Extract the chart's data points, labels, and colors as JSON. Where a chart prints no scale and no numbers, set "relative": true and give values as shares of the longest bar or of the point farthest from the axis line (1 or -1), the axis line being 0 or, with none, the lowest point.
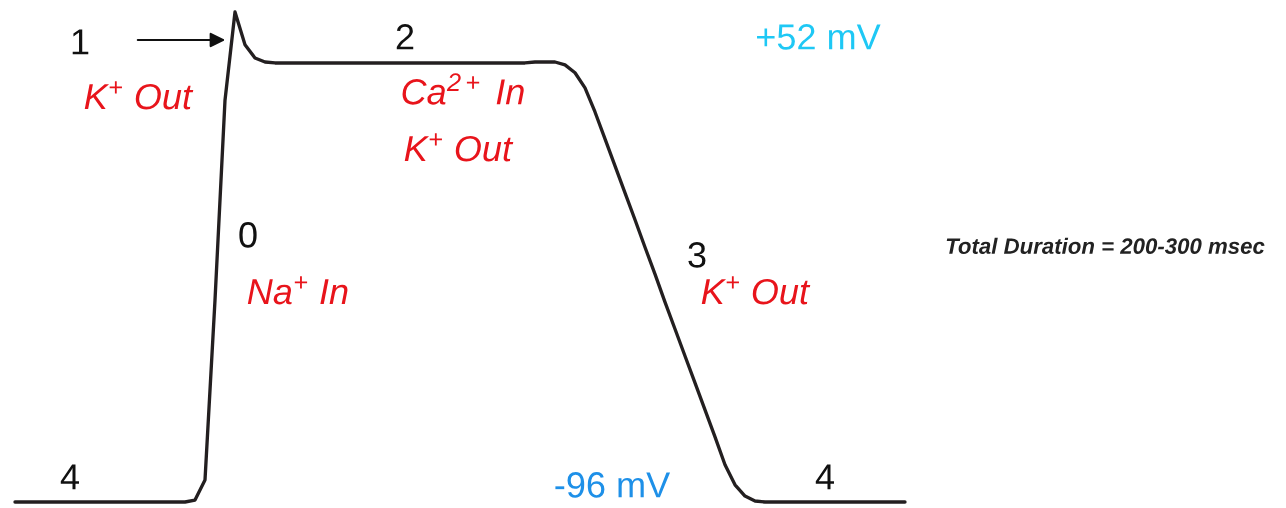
{
  "chart_data": {
    "type": "line",
    "relative": true,
    "categories": [
      null,
      null,
      null,
      null,
      null,
      null,
      null,
      null,
      null,
      null,
      null,
      null,
      null,
      null,
      null,
      null,
      null,
      null,
      null,
      null,
      null,
      null,
      null,
      null,
      null,
      null,
      null,
      null,
      null,
      null,
      null,
      null,
      null,
      null,
      null,
      null,
      null,
      null,
      null,
      null,
      null,
      null,
      null,
      null,
      null,
      null,
      null,
      null,
      null,
      null,
      null,
      null,
      null,
      null,
      null,
      null,
      null,
      null,
      null,
      null,
      null,
      null,
      null,
      null,
      null,
      null,
      null,
      null,
      null,
      null,
      null,
      null,
      null,
      null,
      null,
      null,
      null,
      null,
      null,
      null,
      null,
      null,
      null,
      null,
      null,
      null,
      null,
      null,
      null,
      null
    ],
    "series": [
      {
        "color": "#231f20",
        "values": [
          0,
          0,
          0,
          0,
          0,
          0,
          0,
          0,
          0,
          0,
          0,
          0,
          0,
          0,
          0,
          0,
          0,
          0,
          0.004,
          0.045,
          0.412,
          0.82,
          1,
          0.933,
          0.906,
          0.898,
          0.896,
          0.896,
          0.896,
          0.896,
          0.896,
          0.896,
          0.896,
          0.896,
          0.896,
          0.896,
          0.896,
          0.896,
          0.896,
          0.896,
          0.896,
          0.896,
          0.896,
          0.896,
          0.896,
          0.896,
          0.896,
          0.896,
          0.896,
          0.896,
          0.896,
          0.896,
          0.898,
          0.898,
          0.898,
          0.892,
          0.876,
          0.845,
          0.796,
          0.741,
          0.686,
          0.631,
          0.576,
          0.52,
          0.465,
          0.408,
          0.353,
          0.298,
          0.243,
          0.188,
          0.133,
          0.076,
          0.035,
          0.012,
          0.002,
          0,
          0,
          0,
          0,
          0,
          0,
          0,
          0,
          0,
          0,
          0,
          0,
          0,
          0,
          0
        ]
      }
    ],
    "annotations": [
      "1",
      "K$^{+}$ Out",
      "2",
      "Ca$^{2+}$ In",
      "K$^{+}$ Out",
      "0",
      "Na$^{+}$ In",
      "3",
      "K$^{+}$ Out",
      "4",
      "4",
      "+52 mV",
      "-96 mV",
      "Total Duration = 200-300 msec"
    ],
    "legend": false,
    "marker": "none",
    "line_style": "solid"
  }
}
